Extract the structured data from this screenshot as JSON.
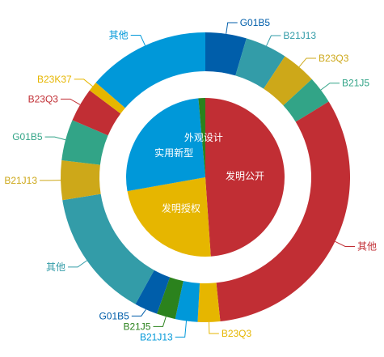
{
  "chart_data": {
    "type": "pie",
    "inner": [
      {
        "name": "发明公开",
        "value": 48.9,
        "color": "#c12e34"
      },
      {
        "name": "发明授权",
        "value": 23.3,
        "color": "#e6b600"
      },
      {
        "name": "实用新型",
        "value": 26.4,
        "color": "#0098d9"
      },
      {
        "name": "外观设计",
        "value": 1.4,
        "color": "#2b821d"
      }
    ],
    "outer": [
      {
        "name": "G01B5",
        "value": 4.6,
        "color": "#005eaa"
      },
      {
        "name": "B21J13",
        "value": 4.7,
        "color": "#339ca8"
      },
      {
        "name": "B23Q3",
        "value": 3.9,
        "color": "#cda819"
      },
      {
        "name": "B21J5",
        "value": 3.1,
        "color": "#32a487"
      },
      {
        "name": "其他",
        "value": 32.2,
        "color": "#c12e34"
      },
      {
        "name": "B23Q3",
        "value": 2.5,
        "color": "#e6b600"
      },
      {
        "name": "B21J13",
        "value": 2.5,
        "color": "#0098d9"
      },
      {
        "name": "B21J5",
        "value": 2.1,
        "color": "#2b821d"
      },
      {
        "name": "G01B5",
        "value": 2.6,
        "color": "#005eaa"
      },
      {
        "name": "其他",
        "value": 14.5,
        "color": "#339ca8"
      },
      {
        "name": "B21J13",
        "value": 4.4,
        "color": "#cda819"
      },
      {
        "name": "G01B5",
        "value": 4.6,
        "color": "#32a487"
      },
      {
        "name": "B23Q3",
        "value": 3.8,
        "color": "#c12e34"
      },
      {
        "name": "B23K37",
        "value": 1.1,
        "color": "#e6b600"
      },
      {
        "name": "其他",
        "value": 13.7,
        "color": "#0098d9"
      }
    ]
  }
}
